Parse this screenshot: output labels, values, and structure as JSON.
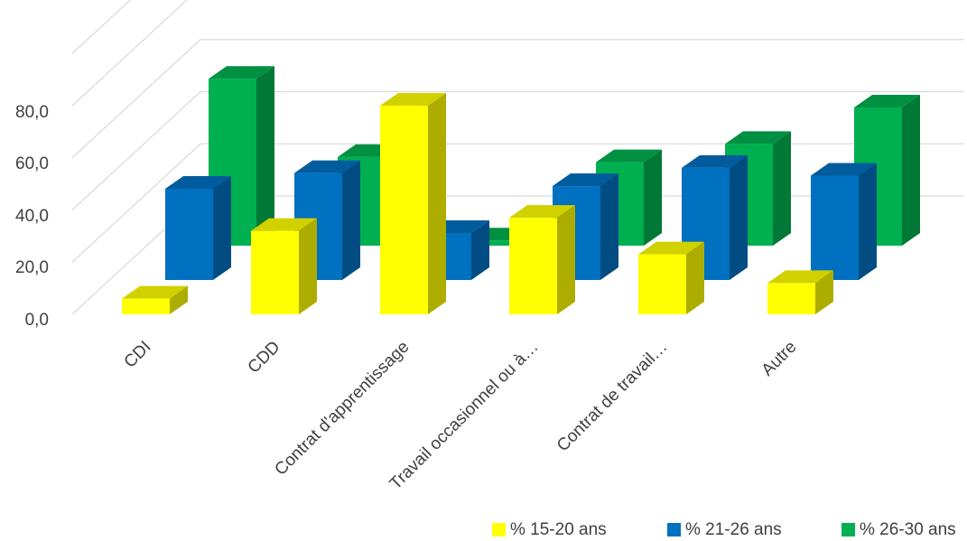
{
  "chart_data": {
    "type": "bar",
    "style": "3d-clustered-column",
    "categories": [
      "CDI",
      "CDD",
      "Contrat d'apprentissage",
      "Travail occasionnel ou à…",
      "Contrat de travail…",
      "Autre"
    ],
    "series": [
      {
        "name": "% 15-20 ans",
        "color": "#FFFF00",
        "values": [
          6,
          32,
          80,
          37,
          23,
          12
        ]
      },
      {
        "name": "% 21-26 ans",
        "color": "#0070C0",
        "values": [
          35,
          41,
          18,
          36,
          43,
          40
        ]
      },
      {
        "name": "% 26-30 ans",
        "color": "#00B050",
        "values": [
          64,
          34,
          2,
          32,
          39,
          53
        ]
      }
    ],
    "yticks": [
      "0,0",
      "20,0",
      "40,0",
      "60,0",
      "80,0"
    ],
    "ylim": [
      0,
      80
    ],
    "grid": true,
    "legend": "bottom-right"
  }
}
